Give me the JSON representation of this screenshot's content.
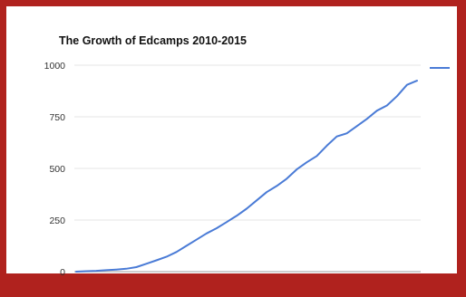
{
  "chart_data": {
    "type": "line",
    "title": "The Growth of Edcamps 2010-2015",
    "xlabel": "",
    "ylabel": "",
    "ylim": [
      0,
      1000
    ],
    "yticks": [
      0,
      250,
      500,
      750,
      1000
    ],
    "grid": true,
    "legend_position": "right",
    "series_color": "#4a7bd6",
    "x": [
      0,
      2,
      4,
      6,
      8,
      10,
      12,
      14,
      16,
      18,
      20,
      22,
      24,
      26,
      28,
      30,
      32,
      34,
      36,
      38,
      40,
      42,
      44,
      46,
      48,
      50,
      52,
      54,
      56,
      58,
      60,
      62,
      64,
      66,
      68
    ],
    "series": [
      {
        "values": [
          0,
          2,
          4,
          7,
          10,
          14,
          22,
          38,
          55,
          72,
          95,
          125,
          155,
          185,
          210,
          240,
          270,
          305,
          345,
          385,
          415,
          450,
          495,
          530,
          560,
          610,
          655,
          670,
          705,
          740,
          780,
          805,
          850,
          905,
          925
        ]
      }
    ]
  }
}
